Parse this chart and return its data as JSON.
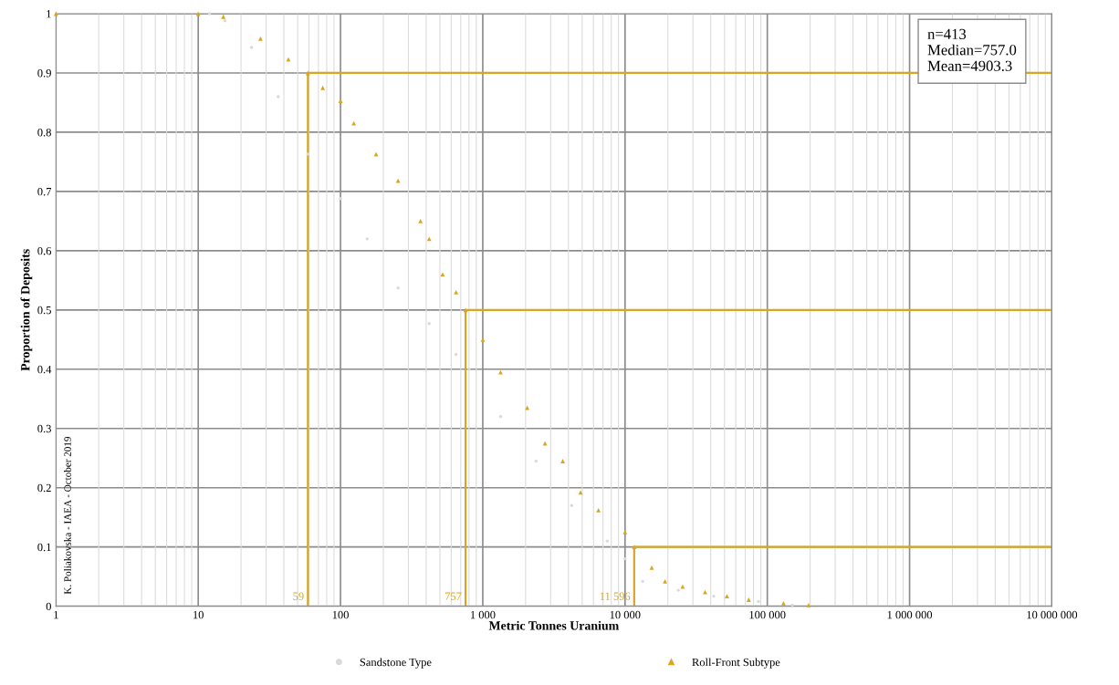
{
  "chart_data": {
    "type": "scatter",
    "xlabel": "Metric Tonnes Uranium",
    "ylabel": "Proportion of Deposits",
    "log": "x",
    "grid": true,
    "legend": "bottom",
    "xlim": [
      1,
      10000000
    ],
    "xticks": [
      1,
      10,
      100,
      {
        "value": 1000,
        "label": "1 000"
      },
      {
        "value": 10000,
        "label": "10 000"
      },
      {
        "value": 100000,
        "label": "100 000"
      },
      {
        "value": 1000000,
        "label": "1 000 000"
      },
      {
        "value": 10000000,
        "label": "10 000 000"
      }
    ],
    "ylim": [
      0,
      1
    ],
    "yticks": [
      0,
      0.1,
      0.2,
      0.3,
      0.4,
      0.5,
      0.6,
      0.7,
      0.8,
      0.9,
      1
    ],
    "series": [
      {
        "name": "Sandstone Type",
        "color": "#d9d9d9",
        "marker": "circle",
        "x": [
          12,
          15.4,
          23.7,
          36.5,
          59,
          100,
          154,
          254,
          420,
          649,
          800,
          1334,
          2371,
          4220,
          7500,
          10000,
          13300,
          23700,
          42000,
          86600,
          150000
        ],
        "values": [
          1,
          0.988,
          0.943,
          0.86,
          0.763,
          0.688,
          0.62,
          0.537,
          0.477,
          0.425,
          0.4,
          0.32,
          0.245,
          0.17,
          0.11,
          0.08,
          0.042,
          0.027,
          0.017,
          0.008,
          0.002
        ]
      },
      {
        "name": "Roll-Front Subtype",
        "color": "#daa520",
        "marker": "triangle",
        "x": [
          1,
          10,
          15,
          27.4,
          43,
          59,
          75,
          100,
          124,
          178,
          254,
          365,
          420,
          522,
          649,
          757,
          1000,
          1334,
          2054,
          2738,
          3650,
          4870,
          6500,
          10000,
          11600,
          15400,
          19100,
          25400,
          36500,
          52000,
          74000,
          130000,
          195000
        ],
        "values": [
          1,
          1,
          0.995,
          0.958,
          0.923,
          0.9,
          0.875,
          0.853,
          0.815,
          0.763,
          0.718,
          0.65,
          0.62,
          0.56,
          0.53,
          0.5,
          0.45,
          0.395,
          0.335,
          0.275,
          0.245,
          0.192,
          0.162,
          0.125,
          0.1,
          0.065,
          0.042,
          0.033,
          0.024,
          0.017,
          0.011,
          0.005,
          0.002
        ]
      },
      {
        "type": "line",
        "color": "#daa520",
        "marker": "none",
        "x": [
          59,
          59,
          10000000
        ],
        "values": [
          0,
          0.9,
          0.9
        ]
      },
      {
        "type": "line",
        "color": "#daa520",
        "marker": "none",
        "x": [
          757,
          757,
          10000000
        ],
        "values": [
          0,
          0.5,
          0.5
        ]
      },
      {
        "type": "line",
        "color": "#daa520",
        "marker": "none",
        "x": [
          11596,
          11596,
          10000000
        ],
        "values": [
          0,
          0.1,
          0.1
        ]
      }
    ],
    "annotations": [
      {
        "text": "59",
        "x": 59,
        "y": 0
      },
      {
        "text": "757",
        "x": 757,
        "y": 0
      },
      {
        "text": "11 596",
        "x": 11596,
        "y": 0
      },
      "n=413\nMedian=757.0\nMean=4903.3",
      "K. Poliakovska - IAEA - October 2019"
    ]
  }
}
